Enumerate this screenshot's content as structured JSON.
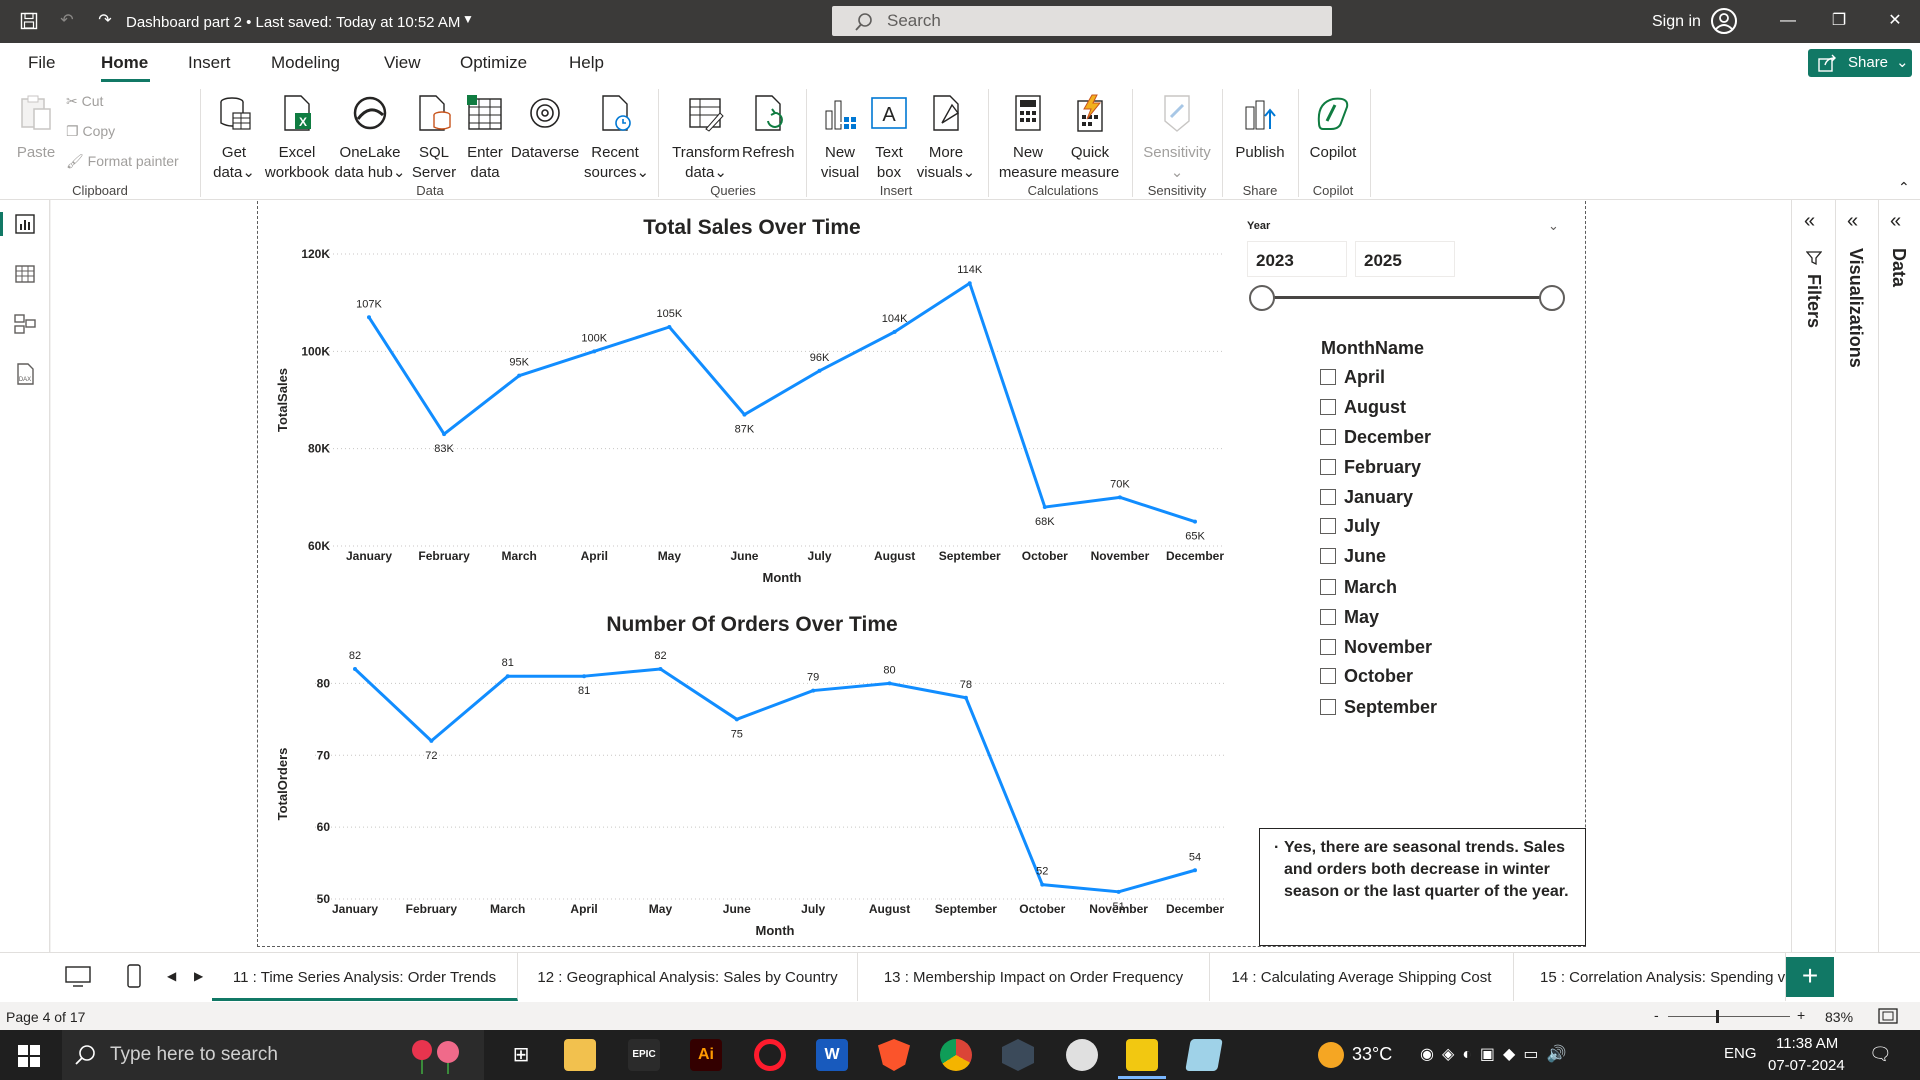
{
  "window": {
    "doc_title": "Dashboard part 2 • Last saved: Today at 10:52 AM",
    "search_placeholder": "Search",
    "signin": "Sign in"
  },
  "menu": {
    "tabs": [
      "File",
      "Home",
      "Insert",
      "Modeling",
      "View",
      "Optimize",
      "Help"
    ],
    "share": "Share"
  },
  "ribbon": {
    "clipboard": {
      "paste": "Paste",
      "cut": "Cut",
      "copy": "Copy",
      "format_painter": "Format painter",
      "label": "Clipboard"
    },
    "data": {
      "get_data": [
        "Get",
        "data"
      ],
      "excel": [
        "Excel",
        "workbook"
      ],
      "onelake": [
        "OneLake",
        "data hub"
      ],
      "sql": [
        "SQL",
        "Server"
      ],
      "enter": [
        "Enter",
        "data"
      ],
      "dataverse": "Dataverse",
      "recent": [
        "Recent",
        "sources"
      ],
      "label": "Data"
    },
    "queries": {
      "transform": [
        "Transform",
        "data"
      ],
      "refresh": "Refresh",
      "label": "Queries"
    },
    "insert": {
      "new_visual": [
        "New",
        "visual"
      ],
      "text_box": [
        "Text",
        "box"
      ],
      "more_visuals": [
        "More",
        "visuals"
      ],
      "label": "Insert"
    },
    "calculations": {
      "new_measure": [
        "New",
        "measure"
      ],
      "quick_measure": [
        "Quick",
        "measure"
      ],
      "label": "Calculations"
    },
    "sensitivity": {
      "btn": "Sensitivity",
      "label": "Sensitivity"
    },
    "share": {
      "publish": "Publish",
      "label": "Share"
    },
    "copilot": {
      "btn": "Copilot",
      "label": "Copilot"
    }
  },
  "slicers": {
    "year_label": "Year",
    "year_from": "2023",
    "year_to": "2025",
    "year_range_fraction": [
      0.0,
      1.0
    ],
    "month_title": "MonthName",
    "months": [
      "April",
      "August",
      "December",
      "February",
      "January",
      "July",
      "June",
      "March",
      "May",
      "November",
      "October",
      "September"
    ]
  },
  "note": "Yes, there are seasonal trends. Sales and orders both decrease in winter season or the last quarter of the year.",
  "panes": {
    "filters": "Filters",
    "visualizations": "Visualizations",
    "data": "Data"
  },
  "page_tabs": [
    "11 : Time Series Analysis: Order Trends",
    "12 : Geographical Analysis: Sales by Country",
    "13 : Membership Impact on Order Frequency",
    "14 : Calculating Average Shipping Cost",
    "15 : Correlation Analysis: Spending vs"
  ],
  "status": {
    "page": "Page 4 of 17",
    "zoom": "83%",
    "zoom_minus": "-",
    "zoom_plus": "+"
  },
  "taskbar": {
    "search": "Type here to search",
    "weather": "33°C",
    "lang": "ENG",
    "time": "11:38 AM",
    "date": "07-07-2024"
  },
  "chart_data": [
    {
      "type": "line",
      "title": "Total Sales Over Time",
      "xlabel": "Month",
      "ylabel": "TotalSales",
      "categories": [
        "January",
        "February",
        "March",
        "April",
        "May",
        "June",
        "July",
        "August",
        "September",
        "October",
        "November",
        "December"
      ],
      "values": [
        107000,
        83000,
        95000,
        100000,
        105000,
        87000,
        96000,
        104000,
        114000,
        68000,
        70000,
        65000
      ],
      "data_labels": [
        "107K",
        "83K",
        "95K",
        "100K",
        "105K",
        "87K",
        "96K",
        "104K",
        "114K",
        "68K",
        "70K",
        "65K"
      ],
      "ylim": [
        60000,
        120000
      ],
      "yticks": [
        60000,
        80000,
        100000,
        120000
      ],
      "ytick_labels": [
        "60K",
        "80K",
        "100K",
        "120K"
      ],
      "color": "#118DFF",
      "grid": true
    },
    {
      "type": "line",
      "title": "Number Of Orders Over Time",
      "xlabel": "Month",
      "ylabel": "TotalOrders",
      "categories": [
        "January",
        "February",
        "March",
        "April",
        "May",
        "June",
        "July",
        "August",
        "September",
        "October",
        "November",
        "December"
      ],
      "values": [
        82,
        72,
        81,
        81,
        82,
        75,
        79,
        80,
        78,
        52,
        51,
        54
      ],
      "data_labels": [
        "82",
        "72",
        "81",
        "81",
        "82",
        "75",
        "79",
        "80",
        "78",
        "52",
        "51",
        "54"
      ],
      "ylim": [
        50,
        82
      ],
      "yticks": [
        50,
        60,
        70,
        80
      ],
      "ytick_labels": [
        "50",
        "60",
        "70",
        "80"
      ],
      "color": "#118DFF",
      "grid": true
    }
  ]
}
